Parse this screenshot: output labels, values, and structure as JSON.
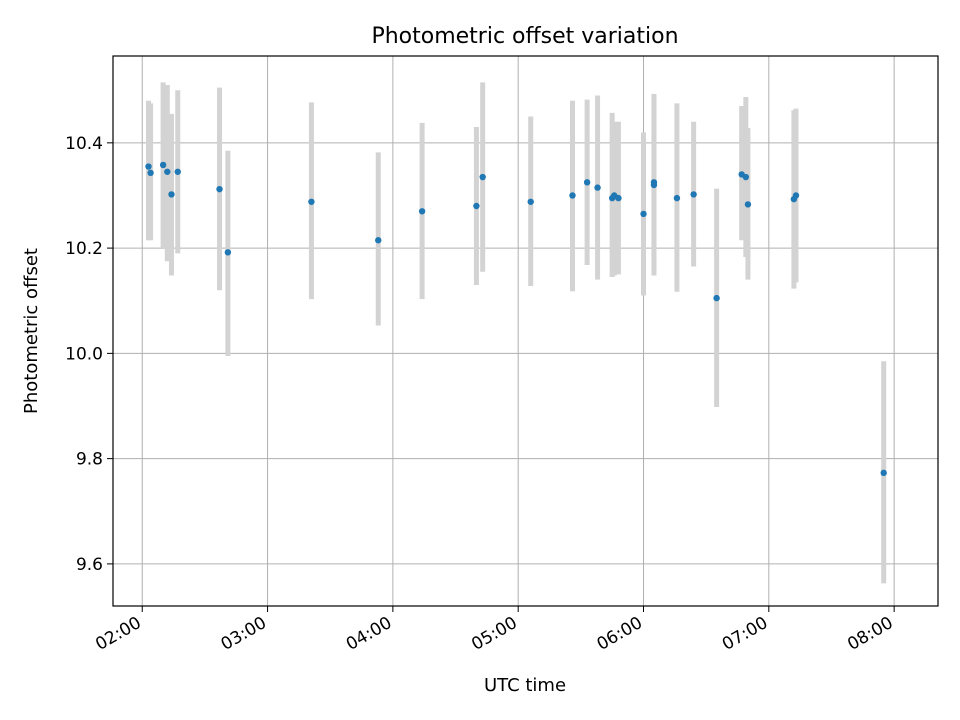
{
  "chart_data": {
    "type": "scatter",
    "title": "Photometric offset variation",
    "xlabel": "UTC time",
    "ylabel": "Photometric offset",
    "x_tick_labels": [
      "02:00",
      "03:00",
      "04:00",
      "05:00",
      "06:00",
      "07:00",
      "08:00"
    ],
    "y_ticks": [
      9.6,
      9.8,
      10.0,
      10.2,
      10.4
    ],
    "xlim": [
      "01:46",
      "08:21"
    ],
    "ylim": [
      9.52,
      10.565
    ],
    "grid": true,
    "colors": {
      "point": "#1f77b4",
      "errorbar": "#d3d3d3",
      "grid": "#b0b0b0"
    },
    "points": [
      {
        "x": "02:03",
        "y": 10.355,
        "ylow": 10.215,
        "yhigh": 10.48
      },
      {
        "x": "02:04",
        "y": 10.343,
        "ylow": 10.215,
        "yhigh": 10.475
      },
      {
        "x": "02:10",
        "y": 10.358,
        "ylow": 10.2,
        "yhigh": 10.515
      },
      {
        "x": "02:12",
        "y": 10.345,
        "ylow": 10.175,
        "yhigh": 10.51
      },
      {
        "x": "02:14",
        "y": 10.302,
        "ylow": 10.148,
        "yhigh": 10.455
      },
      {
        "x": "02:17",
        "y": 10.345,
        "ylow": 10.19,
        "yhigh": 10.5
      },
      {
        "x": "02:37",
        "y": 10.312,
        "ylow": 10.12,
        "yhigh": 10.505
      },
      {
        "x": "02:41",
        "y": 10.192,
        "ylow": 9.995,
        "yhigh": 10.385
      },
      {
        "x": "03:21",
        "y": 10.288,
        "ylow": 10.103,
        "yhigh": 10.477
      },
      {
        "x": "03:53",
        "y": 10.215,
        "ylow": 10.053,
        "yhigh": 10.382
      },
      {
        "x": "04:14",
        "y": 10.27,
        "ylow": 10.103,
        "yhigh": 10.438
      },
      {
        "x": "04:40",
        "y": 10.28,
        "ylow": 10.13,
        "yhigh": 10.43
      },
      {
        "x": "04:43",
        "y": 10.335,
        "ylow": 10.155,
        "yhigh": 10.515
      },
      {
        "x": "05:06",
        "y": 10.288,
        "ylow": 10.128,
        "yhigh": 10.45
      },
      {
        "x": "05:26",
        "y": 10.3,
        "ylow": 10.118,
        "yhigh": 10.48
      },
      {
        "x": "05:33",
        "y": 10.325,
        "ylow": 10.168,
        "yhigh": 10.482
      },
      {
        "x": "05:38",
        "y": 10.315,
        "ylow": 10.14,
        "yhigh": 10.49
      },
      {
        "x": "05:45",
        "y": 10.295,
        "ylow": 10.145,
        "yhigh": 10.457
      },
      {
        "x": "05:46",
        "y": 10.3,
        "ylow": 10.148,
        "yhigh": 10.44
      },
      {
        "x": "05:48",
        "y": 10.295,
        "ylow": 10.15,
        "yhigh": 10.44
      },
      {
        "x": "06:00",
        "y": 10.265,
        "ylow": 10.11,
        "yhigh": 10.42
      },
      {
        "x": "06:05",
        "y": 10.32,
        "ylow": 10.148,
        "yhigh": 10.49
      },
      {
        "x": "06:05",
        "y": 10.325,
        "ylow": 10.155,
        "yhigh": 10.493
      },
      {
        "x": "06:16",
        "y": 10.295,
        "ylow": 10.117,
        "yhigh": 10.475
      },
      {
        "x": "06:24",
        "y": 10.302,
        "ylow": 10.165,
        "yhigh": 10.44
      },
      {
        "x": "06:35",
        "y": 10.105,
        "ylow": 9.898,
        "yhigh": 10.313
      },
      {
        "x": "06:47",
        "y": 10.34,
        "ylow": 10.215,
        "yhigh": 10.47
      },
      {
        "x": "06:49",
        "y": 10.335,
        "ylow": 10.183,
        "yhigh": 10.487
      },
      {
        "x": "06:50",
        "y": 10.283,
        "ylow": 10.14,
        "yhigh": 10.428
      },
      {
        "x": "07:12",
        "y": 10.293,
        "ylow": 10.123,
        "yhigh": 10.462
      },
      {
        "x": "07:13",
        "y": 10.3,
        "ylow": 10.135,
        "yhigh": 10.465
      },
      {
        "x": "07:55",
        "y": 9.773,
        "ylow": 9.563,
        "yhigh": 9.985
      }
    ]
  }
}
